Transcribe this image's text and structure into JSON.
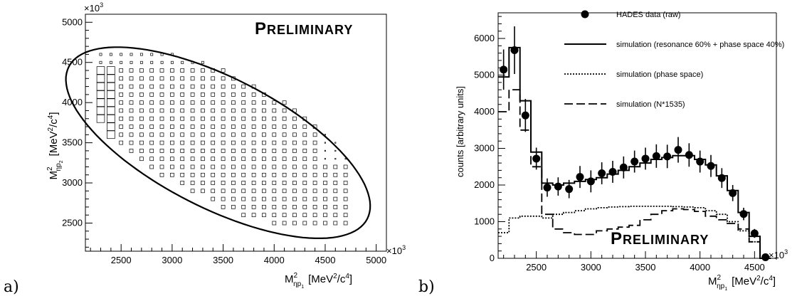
{
  "panel_labels": {
    "a": "a)",
    "b": "b)"
  },
  "chart_data": [
    {
      "type": "heatmap",
      "panel": "a)",
      "preliminary_first": "P",
      "preliminary_rest": "RELIMINARY",
      "x_label_main": "M",
      "x_label_sup": "2",
      "x_label_sub": "ηp",
      "x_label_subsub": "1",
      "x_label_units": "[MeV",
      "x_label_units_sup": "2",
      "x_label_units_tail": "/c",
      "x_label_units_sup2": "4",
      "x_label_units_end": "]",
      "y_label_main": "M",
      "y_label_sup": "2",
      "y_label_sub": "ηp",
      "y_label_subsub": "2",
      "y_label_units": "[MeV",
      "y_label_units_sup": "2",
      "y_label_units_tail": "/c",
      "y_label_units_sup2": "4",
      "y_label_units_end": "]",
      "x_multiplier": "×10",
      "x_multiplier_exp": "3",
      "y_multiplier": "×10",
      "y_multiplier_exp": "3",
      "xlim": [
        2150,
        5100
      ],
      "ylim": [
        2150,
        5100
      ],
      "x_ticks": [
        "2500",
        "3000",
        "3500",
        "4000",
        "4500",
        "5000"
      ],
      "y_ticks": [
        "2500",
        "3000",
        "3500",
        "4000",
        "4500",
        "5000"
      ],
      "grid": false,
      "bin_width": 100,
      "boundary": "kinematic limit (closed curve)"
    },
    {
      "type": "line",
      "panel": "b)",
      "preliminary_first": "P",
      "preliminary_rest": "RELIMINARY",
      "x_label_main": "M",
      "x_label_sup": "2",
      "x_label_sub": "ηp",
      "x_label_subsub": "1",
      "x_label_units": "[MeV",
      "x_label_units_sup": "2",
      "x_label_units_tail": "/c",
      "x_label_units_sup2": "4",
      "x_label_units_end": "]",
      "y_label": "counts [arbitrary units]",
      "x_multiplier": "×10",
      "x_multiplier_exp": "3",
      "xlim": [
        2150,
        4700
      ],
      "ylim": [
        0,
        6700
      ],
      "x_ticks": [
        "2500",
        "3000",
        "3500",
        "4000",
        "4500"
      ],
      "y_ticks": [
        "0",
        "1000",
        "2000",
        "3000",
        "4000",
        "5000",
        "6000"
      ],
      "legend_position": "top-right",
      "series": [
        {
          "name": "HADES data (raw)",
          "style": "points",
          "x": [
            2200,
            2300,
            2400,
            2500,
            2600,
            2700,
            2800,
            2900,
            3000,
            3100,
            3200,
            3300,
            3400,
            3500,
            3600,
            3700,
            3800,
            3900,
            4000,
            4100,
            4200,
            4300,
            4400,
            4500,
            4600
          ],
          "values": [
            5150,
            5680,
            3900,
            2720,
            1930,
            1960,
            1890,
            2220,
            2100,
            2320,
            2360,
            2480,
            2640,
            2720,
            2790,
            2780,
            2960,
            2820,
            2640,
            2520,
            2190,
            1780,
            1210,
            680,
            30
          ],
          "errors": [
            550,
            650,
            450,
            300,
            250,
            250,
            250,
            300,
            300,
            300,
            300,
            300,
            300,
            300,
            320,
            320,
            350,
            320,
            300,
            300,
            270,
            220,
            170,
            120,
            50
          ]
        },
        {
          "name": "simulation (resonance 60% + phase space 40%)",
          "style": "solid",
          "x": [
            2200,
            2300,
            2400,
            2500,
            2600,
            2700,
            2800,
            2900,
            3000,
            3100,
            3200,
            3300,
            3400,
            3500,
            3600,
            3700,
            3800,
            3900,
            4000,
            4100,
            4200,
            4300,
            4400,
            4500,
            4600
          ],
          "values": [
            4950,
            5750,
            4300,
            2900,
            2050,
            2000,
            2050,
            2100,
            2150,
            2200,
            2300,
            2400,
            2500,
            2600,
            2700,
            2750,
            2800,
            2800,
            2700,
            2550,
            2250,
            1850,
            1250,
            600,
            0
          ]
        },
        {
          "name": "simulation (phase space)",
          "style": "dotted",
          "x": [
            2200,
            2300,
            2400,
            2500,
            2600,
            2700,
            2800,
            2900,
            3000,
            3100,
            3200,
            3300,
            3400,
            3500,
            3600,
            3700,
            3800,
            3900,
            4000,
            4100,
            4200,
            4300,
            4400,
            4500,
            4600
          ],
          "values": [
            700,
            1100,
            1150,
            1150,
            1100,
            1200,
            1250,
            1300,
            1350,
            1380,
            1400,
            1410,
            1420,
            1420,
            1420,
            1420,
            1410,
            1400,
            1380,
            1300,
            1200,
            1000,
            750,
            450,
            0
          ]
        },
        {
          "name": "simulation (N*1535)",
          "style": "dashed",
          "x": [
            2200,
            2300,
            2400,
            2500,
            2600,
            2700,
            2800,
            2900,
            3000,
            3100,
            3200,
            3300,
            3400,
            3500,
            3600,
            3700,
            3800,
            3900,
            4000,
            4100,
            4200,
            4300,
            4400,
            4500,
            4600
          ],
          "values": [
            4000,
            4600,
            3500,
            2500,
            1200,
            800,
            700,
            650,
            650,
            750,
            800,
            850,
            900,
            1050,
            1200,
            1300,
            1350,
            1330,
            1280,
            1150,
            1050,
            950,
            800,
            450,
            0
          ]
        }
      ]
    }
  ]
}
